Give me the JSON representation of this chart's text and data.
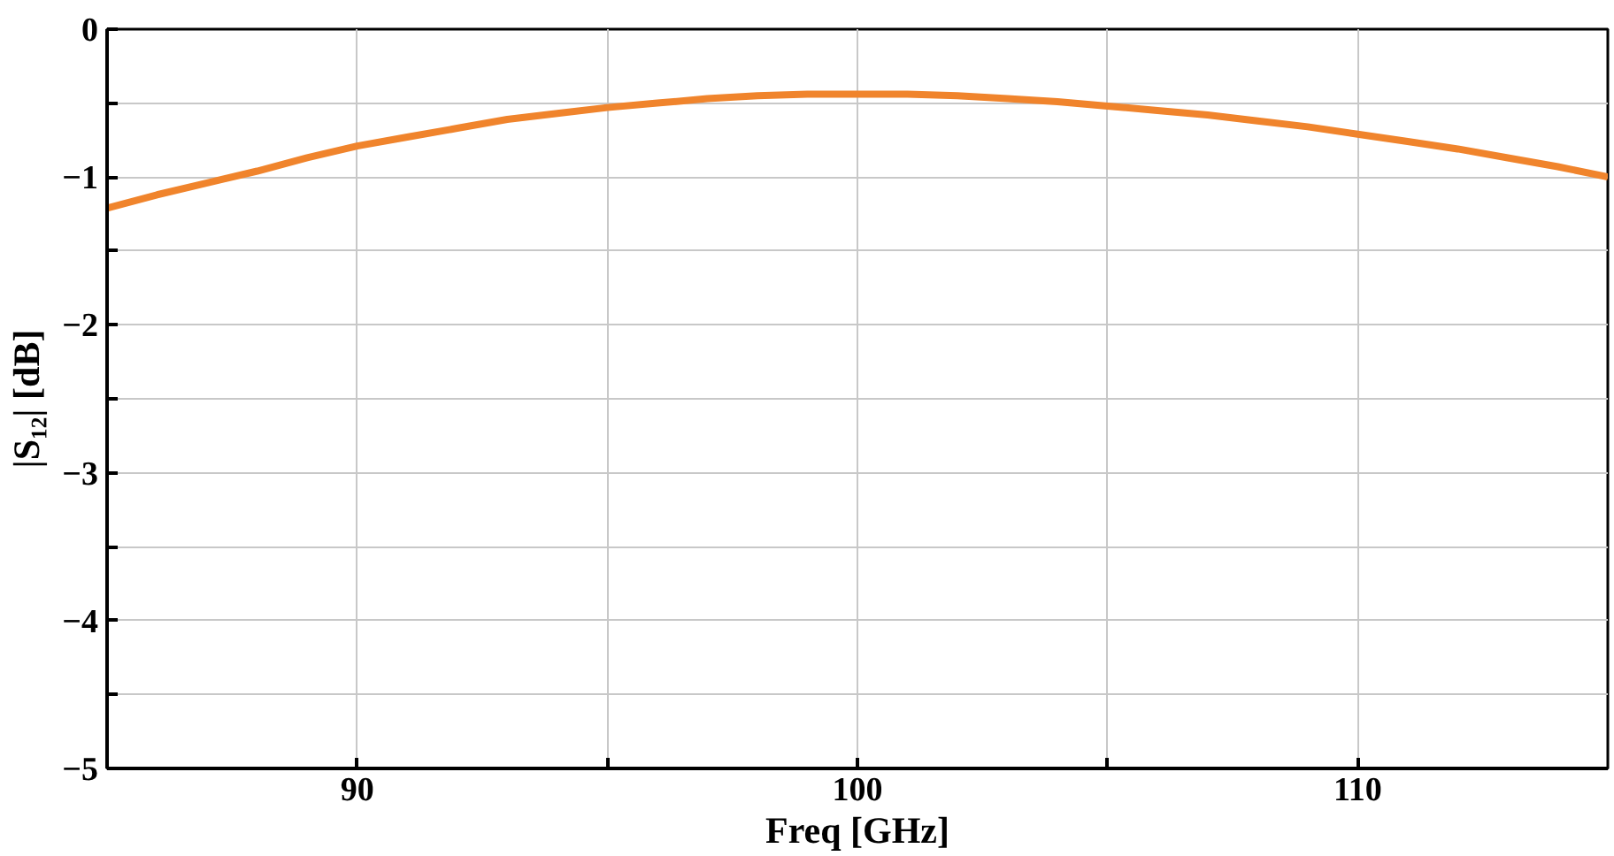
{
  "chart_data": {
    "type": "line",
    "xlabel": "Freq [GHz]",
    "ylabel": "|S₁₂| [dB]",
    "x": [
      85,
      86,
      87,
      88,
      89,
      90,
      91,
      92,
      93,
      94,
      95,
      96,
      97,
      98,
      99,
      100,
      101,
      102,
      103,
      104,
      105,
      106,
      107,
      108,
      109,
      110,
      111,
      112,
      113,
      114,
      115
    ],
    "series": [
      {
        "color": "#f0842c",
        "values": [
          -1.21,
          -1.12,
          -1.04,
          -0.96,
          -0.87,
          -0.79,
          -0.73,
          -0.67,
          -0.61,
          -0.57,
          -0.53,
          -0.5,
          -0.47,
          -0.45,
          -0.44,
          -0.44,
          -0.44,
          -0.45,
          -0.47,
          -0.49,
          -0.52,
          -0.55,
          -0.58,
          -0.62,
          -0.66,
          -0.71,
          -0.76,
          -0.81,
          -0.87,
          -0.93,
          -1.0
        ]
      }
    ],
    "xlim": [
      85,
      115
    ],
    "ylim": [
      -5,
      0
    ],
    "xticks": [
      90,
      {
        "value": 95,
        "label": null
      },
      100,
      {
        "value": 105,
        "label": null
      },
      110
    ],
    "yticks": [
      -5,
      {
        "value": -4.5,
        "label": null
      },
      {
        "value": -4,
        "label": "−4"
      },
      {
        "value": -3.5,
        "label": null
      },
      {
        "value": -3,
        "label": "−3"
      },
      {
        "value": -2.5,
        "label": null
      },
      {
        "value": -2,
        "label": "−2"
      },
      {
        "value": -1.5,
        "label": null
      },
      {
        "value": -1,
        "label": "−1"
      },
      {
        "value": -0.5,
        "label": null
      },
      0
    ],
    "grid": true,
    "marker": "none",
    "line_style": "solid"
  }
}
